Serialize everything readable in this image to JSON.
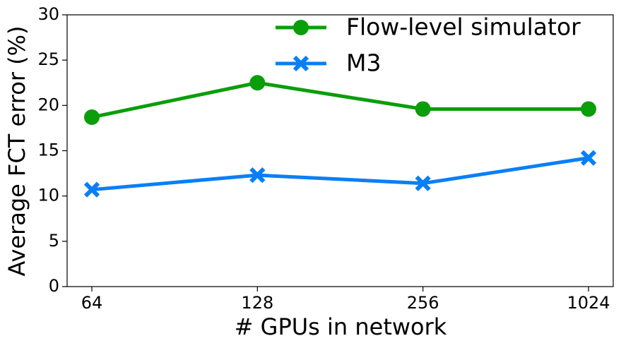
{
  "chart_data": {
    "type": "line",
    "x_label": "# GPUs in network",
    "y_label": "Average FCT error (%)",
    "categories": [
      "64",
      "128",
      "256",
      "1024"
    ],
    "series": [
      {
        "name": "Flow-level simulator",
        "color": "#0a9e0a",
        "marker": "circle",
        "values": [
          18.7,
          22.5,
          19.6,
          19.6
        ]
      },
      {
        "name": "M3",
        "color": "#0a7ff5",
        "marker": "x",
        "values": [
          10.7,
          12.3,
          11.4,
          14.2
        ]
      }
    ],
    "ylim": [
      0,
      30
    ],
    "yticks": [
      0,
      5,
      10,
      15,
      20,
      25,
      30
    ],
    "legend": "upper right",
    "grid": false
  }
}
